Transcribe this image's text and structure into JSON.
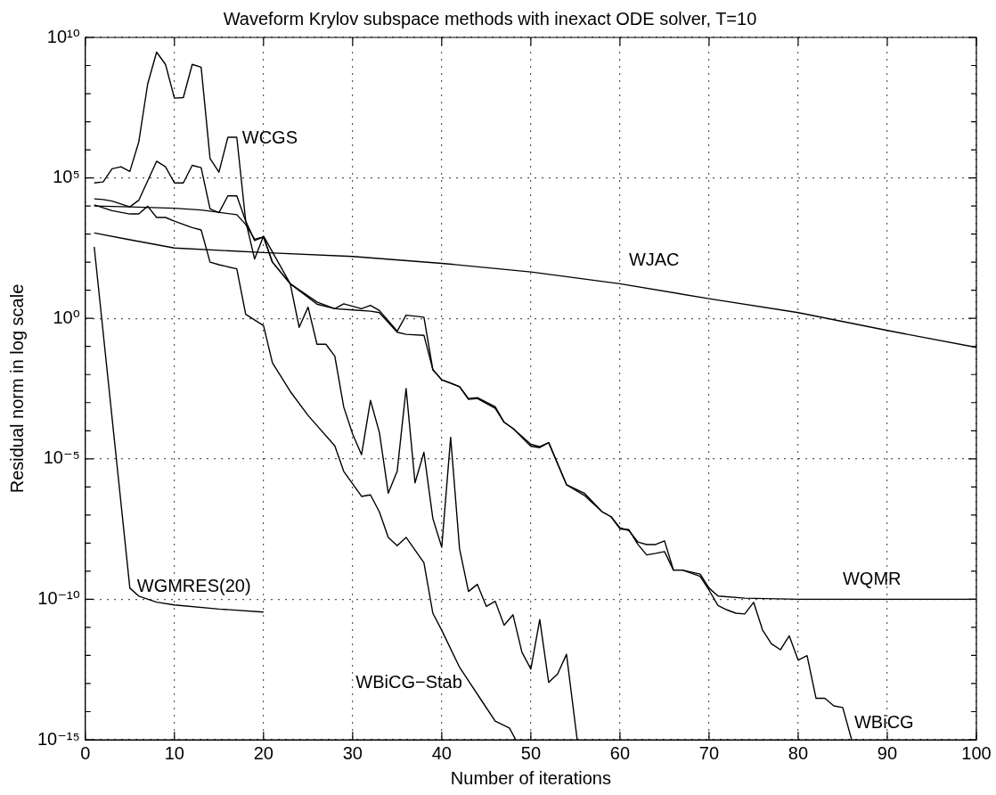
{
  "chart_data": {
    "type": "line",
    "title": "Waveform Krylov subspace methods with inexact ODE solver, T=10",
    "xlabel": "Number of iterations",
    "ylabel": "Residual norm in log scale",
    "log": "y",
    "grid": true,
    "legend": false,
    "marker": "none",
    "xlim": [
      0,
      100
    ],
    "xticks": [
      0,
      10,
      20,
      30,
      40,
      50,
      60,
      70,
      80,
      90,
      100
    ],
    "ylim": [
      1e-15,
      10000000000.0
    ],
    "yticks": [
      {
        "value": 1e-15,
        "label": "10⁻¹⁵"
      },
      {
        "value": 1e-14,
        "label": null
      },
      {
        "value": 1e-13,
        "label": null
      },
      {
        "value": 1e-12,
        "label": null
      },
      {
        "value": 1e-11,
        "label": null
      },
      {
        "value": 1e-10,
        "label": "10⁻¹⁰"
      },
      {
        "value": 1e-09,
        "label": null
      },
      {
        "value": 1e-08,
        "label": null
      },
      {
        "value": 1e-07,
        "label": null
      },
      {
        "value": 1e-06,
        "label": null
      },
      {
        "value": 1e-05,
        "label": "10⁻⁵"
      },
      {
        "value": 0.0001,
        "label": null
      },
      {
        "value": 0.001,
        "label": null
      },
      {
        "value": 0.01,
        "label": null
      },
      {
        "value": 0.1,
        "label": null
      },
      {
        "value": 1,
        "label": "10⁰"
      },
      {
        "value": 10,
        "label": null
      },
      {
        "value": 100,
        "label": null
      },
      {
        "value": 1000,
        "label": null
      },
      {
        "value": 10000,
        "label": null
      },
      {
        "value": 100000,
        "label": "10⁵"
      },
      {
        "value": 1000000.0,
        "label": null
      },
      {
        "value": 10000000.0,
        "label": null
      },
      {
        "value": 100000000.0,
        "label": null
      },
      {
        "value": 1000000000.0,
        "label": null
      },
      {
        "value": 10000000000.0,
        "label": "10¹⁰"
      }
    ],
    "series": [
      {
        "name": "WCGS",
        "color": "#000000",
        "x": [
          1,
          2,
          3,
          4,
          5,
          6,
          7,
          8,
          9,
          10,
          11,
          12,
          13,
          14,
          15,
          16,
          17,
          18,
          19,
          20,
          23,
          24,
          25,
          26,
          27,
          28,
          29,
          30,
          31,
          32,
          33,
          34,
          35,
          36,
          37,
          38,
          39,
          40,
          41,
          42,
          43,
          44,
          45,
          46,
          47,
          48,
          49,
          50,
          51,
          52,
          53,
          54,
          55.2
        ],
        "values": [
          66000.0,
          72000.0,
          210000.0,
          250000.0,
          170000.0,
          1900000.0,
          220000000.0,
          3000000000.0,
          1100000000.0,
          69000000.0,
          72000000.0,
          1100000000.0,
          870000000.0,
          490000.0,
          160000.0,
          2800000.0,
          2800000.0,
          2900,
          130,
          850,
          17,
          0.48,
          2.5,
          0.12,
          0.12,
          0.045,
          0.0007,
          7.6e-05,
          1.4e-05,
          0.0012,
          8.7e-05,
          6e-07,
          3.6e-06,
          0.0032,
          1.4e-06,
          1.7e-05,
          7.6e-08,
          7.1e-09,
          5.8e-05,
          6.2e-09,
          1.9e-10,
          3.4e-10,
          5.6e-11,
          8.5e-11,
          1.2e-11,
          2.8e-11,
          1.3e-12,
          3.3e-13,
          1.9e-11,
          1.1e-13,
          2.2e-13,
          1.1e-12,
          1e-15
        ]
      },
      {
        "name": "WJAC",
        "color": "#000000",
        "x": [
          1,
          5,
          10,
          20,
          30,
          40,
          50,
          60,
          70,
          80,
          90,
          100
        ],
        "values": [
          1100,
          630,
          320,
          220,
          160,
          91,
          45,
          17,
          5,
          1.6,
          0.37,
          0.093
        ]
      },
      {
        "name": "WQMR",
        "color": "#000000",
        "x": [
          1,
          5,
          10,
          13,
          17,
          18,
          19,
          20,
          21,
          23,
          26,
          28,
          30,
          32,
          33,
          35,
          36,
          38,
          39,
          40,
          42,
          43,
          44,
          46,
          47,
          48,
          50,
          51,
          52,
          54,
          56,
          58,
          59,
          60,
          61,
          62,
          63,
          64,
          65,
          66,
          67,
          69,
          70,
          71,
          74,
          80,
          100
        ],
        "values": [
          10000.0,
          9300,
          8300,
          7200,
          4900,
          2200,
          660,
          790,
          100,
          17,
          3.8,
          2.2,
          2,
          1.8,
          1.6,
          0.32,
          0.27,
          0.25,
          0.015,
          0.0065,
          0.0037,
          0.0013,
          0.0014,
          0.00063,
          0.0002,
          0.00012,
          2.8e-05,
          2.5e-05,
          3.8e-05,
          1.2e-06,
          5e-07,
          1.3e-07,
          8.7e-08,
          3.5e-08,
          2.8e-08,
          1.1e-08,
          8.9e-09,
          8.9e-09,
          1.2e-08,
          1.1e-09,
          1.1e-09,
          7.9e-10,
          2.5e-10,
          1.3e-10,
          1.1e-10,
          1e-10,
          1e-10
        ]
      },
      {
        "name": "WBiCG",
        "color": "#000000",
        "x": [
          1,
          2,
          3,
          5,
          6,
          8,
          9,
          10,
          11,
          12,
          13,
          14,
          15,
          16,
          17,
          18,
          19,
          20,
          21,
          23,
          26,
          28,
          29,
          31,
          32,
          33,
          35,
          36,
          38,
          39,
          40,
          42,
          43,
          44,
          46,
          47,
          48,
          50,
          51,
          52,
          54,
          56,
          58,
          59,
          60,
          61,
          62,
          63,
          64,
          65,
          66,
          67,
          69,
          70,
          71,
          72,
          73,
          74,
          75,
          76,
          77,
          78,
          79,
          80,
          81,
          82,
          83,
          84,
          85,
          86
        ],
        "values": [
          18000.0,
          17000.0,
          15000.0,
          9300,
          16000.0,
          390000.0,
          250000.0,
          66000.0,
          66000.0,
          280000.0,
          230000.0,
          7900,
          5800,
          23000.0,
          23000.0,
          2900,
          590,
          790,
          100,
          17,
          3.2,
          2.2,
          3.3,
          2.2,
          2.9,
          1.9,
          0.35,
          1.3,
          1.1,
          0.015,
          0.0065,
          0.0037,
          0.0014,
          0.0015,
          0.00071,
          0.0002,
          0.00012,
          3.3e-05,
          2.7e-05,
          3.8e-05,
          1.2e-06,
          6e-07,
          1.3e-07,
          8.7e-08,
          3.2e-08,
          3e-08,
          9.1e-09,
          3.8e-09,
          4.3e-09,
          5e-09,
          1.1e-09,
          1.1e-09,
          6.6e-10,
          2.1e-10,
          6e-11,
          4.2e-11,
          3.2e-11,
          3e-11,
          7.8e-11,
          8.1e-12,
          2.6e-12,
          1.6e-12,
          5e-12,
          6.8e-13,
          9.8e-13,
          3e-14,
          3e-14,
          1.6e-14,
          1.4e-14,
          1e-15
        ]
      },
      {
        "name": "WBiCG−Stab",
        "color": "#000000",
        "x": [
          1,
          3,
          5,
          6,
          7,
          8,
          9,
          10,
          12,
          13,
          14,
          15,
          17,
          18,
          20,
          21,
          23,
          25,
          28,
          29,
          31,
          32,
          33,
          34,
          35,
          36,
          38,
          39,
          40,
          42,
          44.5,
          46,
          47.6,
          48.3
        ],
        "values": [
          11000.0,
          6800,
          5200,
          5200,
          9800,
          3900,
          3900,
          2900,
          1700,
          1400,
          100,
          81,
          58,
          1.4,
          0.55,
          0.026,
          0.0025,
          0.00035,
          2.9e-05,
          3.6e-06,
          4.6e-07,
          5.2e-07,
          1.3e-07,
          1.6e-08,
          8.1e-09,
          1.6e-08,
          2e-09,
          3.2e-11,
          7.9e-12,
          3.8e-13,
          2.4e-14,
          4.6e-15,
          2.6e-15,
          1e-15
        ]
      },
      {
        "name": "WGMRES(20)",
        "color": "#000000",
        "x": [
          1,
          5,
          6,
          8,
          10,
          15,
          20
        ],
        "values": [
          350,
          2.5e-10,
          1.3e-10,
          7.9e-11,
          6.3e-11,
          4.5e-11,
          3.5e-11
        ]
      }
    ]
  }
}
